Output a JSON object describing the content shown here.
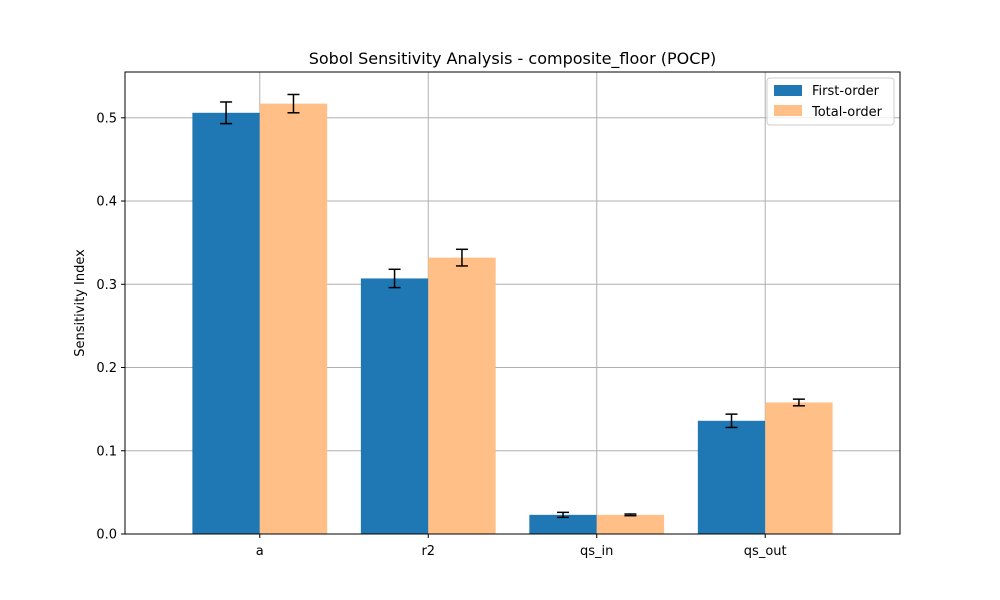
{
  "chart_data": {
    "type": "bar",
    "title": "Sobol Sensitivity Analysis - composite_floor (POCP)",
    "xlabel": "",
    "ylabel": "Sensitivity Index",
    "categories": [
      "a",
      "r2",
      "qs_in",
      "qs_out"
    ],
    "ylim": [
      0,
      0.555
    ],
    "yticks": [
      0.0,
      0.1,
      0.2,
      0.3,
      0.4,
      0.5
    ],
    "ytick_labels": [
      "0.0",
      "0.1",
      "0.2",
      "0.3",
      "0.4",
      "0.5"
    ],
    "grid": true,
    "legend_position": "top-right",
    "series": [
      {
        "name": "First-order",
        "color": "#1f77b4",
        "values": [
          0.506,
          0.307,
          0.023,
          0.136
        ],
        "errors": [
          0.013,
          0.011,
          0.003,
          0.008
        ]
      },
      {
        "name": "Total-order",
        "color": "#ffbf86",
        "values": [
          0.517,
          0.332,
          0.023,
          0.158
        ],
        "errors": [
          0.011,
          0.01,
          0.001,
          0.004
        ]
      }
    ]
  }
}
